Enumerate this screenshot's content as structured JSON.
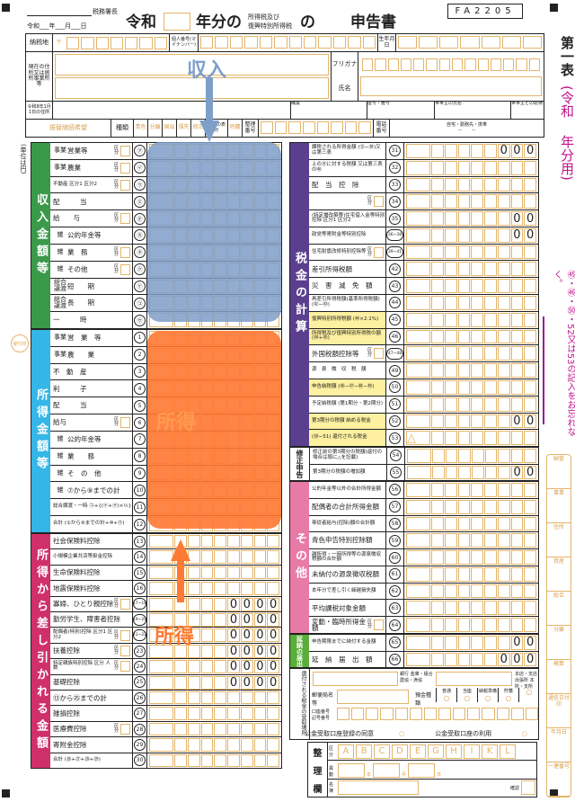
{
  "header": {
    "office_suffix": "税務署長",
    "date_line": "令和___年___月___日",
    "era": "令和",
    "year_suffix": "年分の",
    "tax_line1": "所得税及び",
    "tax_line2": "復興特別所得税",
    "particle": "の",
    "doc_type": "申告書",
    "form_code": "FA2205",
    "labels": {
      "address": "納税地",
      "postal": "〒",
      "my_number": "個人番号(マイナンバー)",
      "birth": "生年月日",
      "current_address": "現在の住所又は居所事業所等",
      "furigana": "フリガナ",
      "name": "氏名",
      "jan1_address": "令和8年1月1日の住所",
      "occupation": "職業",
      "trade_name": "屋号・雅号",
      "householder": "世帯主の氏名",
      "relation": "世帯主との続柄",
      "transfer": "振替継続希望",
      "kind": "種類",
      "kinds": [
        "青色",
        "分離",
        "国出",
        "損失",
        "修正"
      ],
      "special_label": "特農の表示",
      "special": "特農",
      "ref_no": "整理番号",
      "phone": "電話番号",
      "phone_types": "自宅・勤務先・携帯",
      "phone_dash": "－　　－"
    }
  },
  "side": {
    "title1": "第一表",
    "title2": "(令和",
    "title3": "年分用)",
    "reminder": "㊺・㊻・㊿・52又は53の記入をお忘れなく。"
  },
  "unit": "(単位は円)",
  "stamp": "受付印",
  "overlays": {
    "income": "収入",
    "income_arrow": "arrow-down",
    "income_color": "#7f9fc8",
    "shotoku": "所得",
    "shotoku2": "所得",
    "shotoku_color": "#ff7a33"
  },
  "left": [
    {
      "title": "収入金額等",
      "color": "#3a9a4a",
      "rows": [
        {
          "g": "事業",
          "l": "営業等",
          "n": "㋐",
          "k": true
        },
        {
          "g": "事業",
          "l": "農業",
          "n": "㋑",
          "k": true
        },
        {
          "g": "",
          "l": "不動産 区分1 区分2",
          "n": "㋒",
          "k": true
        },
        {
          "g": "",
          "l": "配　　　当",
          "n": "㋓"
        },
        {
          "g": "",
          "l": "給　　与",
          "n": "㋔",
          "k": true
        },
        {
          "g": "雑",
          "l": "公的年金等",
          "n": "㋕"
        },
        {
          "g": "雑",
          "l": "業　務",
          "n": "㋖",
          "k": true
        },
        {
          "g": "雑",
          "l": "その他",
          "n": "㋗",
          "k": true
        },
        {
          "g": "総合譲渡",
          "l": "短　　期",
          "n": "㋘"
        },
        {
          "g": "総合譲渡",
          "l": "長　　期",
          "n": "㋙"
        },
        {
          "g": "",
          "l": "一　　　時",
          "n": "㋚"
        }
      ]
    },
    {
      "title": "所得金額等",
      "color": "#35b6e8",
      "rows": [
        {
          "g": "事業",
          "l": "営　業　等",
          "n": "1"
        },
        {
          "g": "事業",
          "l": "農　　業",
          "n": "2"
        },
        {
          "g": "",
          "l": "不　動　産",
          "n": "3"
        },
        {
          "g": "",
          "l": "利　　　子",
          "n": "4"
        },
        {
          "g": "",
          "l": "配　　　当",
          "n": "5"
        },
        {
          "g": "",
          "l": "給与",
          "n": "6",
          "k": true
        },
        {
          "g": "雑",
          "l": "公的年金等",
          "n": "7"
        },
        {
          "g": "雑",
          "l": "業　　務",
          "n": "8"
        },
        {
          "g": "雑",
          "l": "そ　の　他",
          "n": "9"
        },
        {
          "g": "雑",
          "l": "⑦から⑨までの計",
          "n": "10"
        },
        {
          "g": "",
          "l": "総合譲渡・一時 ㋙+{(㋘+㋚)×½}",
          "n": "11"
        },
        {
          "g": "",
          "l": "合計 (①から⑥までの計+⑩+⑪)",
          "n": "12"
        }
      ]
    },
    {
      "title": "所得から差し引かれる金額",
      "color": "#d0306a",
      "rows": [
        {
          "l": "社会保険料控除",
          "n": "13"
        },
        {
          "l": "小規模企業共済等掛金控除",
          "n": "14"
        },
        {
          "l": "生命保険料控除",
          "n": "15"
        },
        {
          "l": "地震保険料控除",
          "n": "16"
        },
        {
          "l": "寡婦、ひとり親控除",
          "n": "17~18",
          "k": true,
          "s": "0000"
        },
        {
          "l": "勤労学生、障害者控除",
          "n": "19~20",
          "s": "0000"
        },
        {
          "l": "配偶者(特別)控除 区分1 区分2",
          "n": "21~22",
          "k": true,
          "s": "0000"
        },
        {
          "l": "扶養控除",
          "n": "23",
          "k": true,
          "s": "0000"
        },
        {
          "l": "特定親族特別控除 区分 人数",
          "n": "24",
          "k": true,
          "s": "0000"
        },
        {
          "l": "基礎控除",
          "n": "25",
          "s": "0000"
        },
        {
          "l": "⑬から㉕までの計",
          "n": "26"
        },
        {
          "l": "雑損控除",
          "n": "27"
        },
        {
          "l": "医療費控除",
          "n": "28",
          "k": true
        },
        {
          "l": "寄附金控除",
          "n": "29"
        },
        {
          "l": "合計 (㉖+㉗+㉘+㉙)",
          "n": "30"
        }
      ]
    }
  ],
  "right": [
    {
      "title": "税金の計算",
      "color": "#5b3f8f",
      "rows": [
        {
          "l": "課税される所得金額 (⑫−㉚)又は第三表",
          "n": "31",
          "s": "000"
        },
        {
          "l": "上の㉛に対する税額 又は第三表の㊻",
          "n": "32"
        },
        {
          "l": "配　当　控　除",
          "n": "33"
        },
        {
          "l": "",
          "n": "34",
          "k": true
        },
        {
          "l": "(特定増改築等)住宅借入金等特別控除 区分1 区分2",
          "n": "35",
          "s": "00"
        },
        {
          "l": "政党等寄附金等特別控除",
          "n": "36~38",
          "s": "00"
        },
        {
          "l": "住宅耐震改修特別控除等",
          "n": "39~41",
          "k": true
        },
        {
          "l": "差引所得税額",
          "n": "42"
        },
        {
          "l": "災　害　減　免　額",
          "n": "43"
        },
        {
          "l": "再差引所得税額(基準所得税額)(㊷−㊸)",
          "n": "44"
        },
        {
          "l": "復興特別所得税額 (㊹×2.1%)",
          "n": "45",
          "y": true
        },
        {
          "l": "所得税及び復興特別所得税の額 (㊹+㊺)",
          "n": "46",
          "y": true
        },
        {
          "l": "外国税額控除等",
          "n": "47~48",
          "k": true
        },
        {
          "l": "源　泉　徴　収　税　額",
          "n": "49"
        },
        {
          "l": "申告納税額 (㊻−㊼−㊽−㊾)",
          "n": "50",
          "y": true
        },
        {
          "l": "予定納税額 (第1期分・第2期分)",
          "n": "51"
        },
        {
          "l": "第3期分の税額 納める税金",
          "n": "52",
          "s": "00",
          "y": true
        },
        {
          "l": "(㊿−51) 還付される税金",
          "n": "53",
          "p": "△",
          "y": true
        }
      ]
    },
    {
      "title": "修正申告",
      "color": "#ffffff",
      "dark": true,
      "rows": [
        {
          "l": "修正前の第3期分の税額(還付の場合は頭に△を記載)",
          "n": "54"
        },
        {
          "l": "第3期分の税額の増加額",
          "n": "55",
          "s": "00"
        }
      ]
    },
    {
      "title": "その他",
      "color": "#e87aa8",
      "rows": [
        {
          "l": "公的年金等以外の合計所得金額",
          "n": "56"
        },
        {
          "l": "配偶者の合計所得金額",
          "n": "57"
        },
        {
          "l": "専従者給与(控除)額の合計額",
          "n": "58"
        },
        {
          "l": "青色申告特別控除額",
          "n": "59"
        },
        {
          "l": "雑所得・一時所得等の源泉徴収税額の合計額",
          "n": "60"
        },
        {
          "l": "未納付の源泉徴収税額",
          "n": "61"
        },
        {
          "l": "本年分で差し引く繰越損失額",
          "n": "62"
        },
        {
          "l": "平均課税対象金額",
          "n": "63"
        },
        {
          "l": "変動・臨時所得金額",
          "n": "64",
          "k": true
        }
      ]
    },
    {
      "title": "延納の届出",
      "color": "#5aad3a",
      "rows": [
        {
          "l": "申告期限までに納付する金額",
          "n": "65",
          "s": "00"
        },
        {
          "l": "延　納　届　出　額",
          "n": "66",
          "s": "000"
        }
      ]
    }
  ],
  "kubun": "区分",
  "refund": {
    "title": "還付される税金の受取場所",
    "bank": "銀行 金庫・組合 農協・漁協",
    "branch": "本店・支店 出張所 本所・支所",
    "post": "郵便局名等",
    "deposit": "預金種類",
    "types": [
      "普通",
      "当座",
      "納税準備",
      "貯蓄",
      ""
    ],
    "account": "口座番号 記号番号",
    "koukin_agree": "公金受取口座登録の同意",
    "koukin_use": "公金受取口座の利用"
  },
  "seiri": {
    "title": [
      "整",
      "理",
      "欄"
    ],
    "kubun": "区分",
    "letters": [
      "A",
      "B",
      "C",
      "D",
      "E",
      "G",
      "H",
      "I",
      "K",
      "L"
    ],
    "idou": "異動",
    "y": "年",
    "m": "月",
    "d": "日",
    "meibo": "名簿",
    "kakunin": "確認"
  },
  "office": [
    "納管",
    "事業",
    "住所",
    "資産",
    "総合",
    "分離",
    "検算",
    "通信日付印",
    "年月日",
    "一連番号"
  ]
}
